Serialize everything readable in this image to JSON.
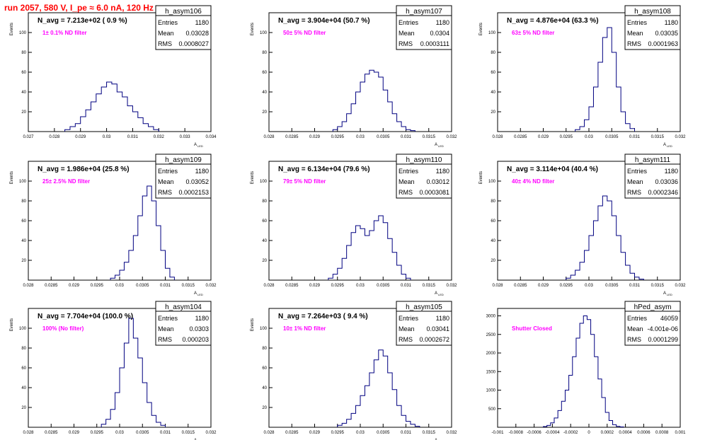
{
  "page": {
    "title": "run 2057,   580 V, I_pe ≈ 6.0 nA, 120 Hz"
  },
  "colors": {
    "histogram": "#000080",
    "title": "#ff0000",
    "annotation": "#ff00ff",
    "text": "#000000"
  },
  "chart_data": [
    {
      "type": "histogram",
      "hist_name": "h_asym106",
      "navg": "N_avg = 7.213e+02 ( 0.9 %)",
      "annotation": "1± 0.1% ND filter",
      "stats": [
        [
          "Entries",
          "1180"
        ],
        [
          "Mean",
          "0.03028"
        ],
        [
          "RMS",
          "0.0008027"
        ]
      ],
      "ylabel": "Events",
      "xlabel": "A_{LED}",
      "xlabel_main": "A",
      "xlabel_sub": "LED",
      "xlim": [
        0.027,
        0.034
      ],
      "ylim": [
        0,
        120
      ],
      "xticks": [
        "0.027",
        "0.028",
        "0.029",
        "0.03",
        "0.031",
        "0.032",
        "0.033",
        "0.034"
      ],
      "xtick_values": [
        0.027,
        0.028,
        0.029,
        0.03,
        0.031,
        0.032,
        0.033,
        0.034
      ],
      "yticks": [
        "20",
        "40",
        "60",
        "80",
        "100"
      ],
      "ytick_values": [
        20,
        40,
        60,
        80,
        100
      ],
      "centers": [
        0.0285,
        0.0287,
        0.0289,
        0.0291,
        0.0293,
        0.0295,
        0.0297,
        0.0299,
        0.0301,
        0.0303,
        0.0305,
        0.0307,
        0.0309,
        0.0311,
        0.0313,
        0.0315,
        0.0317,
        0.0319
      ],
      "counts": [
        2,
        5,
        8,
        15,
        22,
        30,
        38,
        45,
        50,
        48,
        40,
        35,
        26,
        20,
        14,
        8,
        5,
        2
      ]
    },
    {
      "type": "histogram",
      "hist_name": "h_asym107",
      "navg": "N_avg = 3.904e+04 (50.7 %)",
      "annotation": "50± 5% ND filter",
      "stats": [
        [
          "Entries",
          "1180"
        ],
        [
          "Mean",
          "0.0304"
        ],
        [
          "RMS",
          "0.0003111"
        ]
      ],
      "ylabel": "Events",
      "xlabel": "A_{LED}",
      "xlabel_main": "A",
      "xlabel_sub": "LED",
      "xlim": [
        0.028,
        0.032
      ],
      "ylim": [
        0,
        120
      ],
      "xticks": [
        "0.028",
        "0.0285",
        "0.029",
        "0.0295",
        "0.03",
        "0.0305",
        "0.031",
        "0.0315",
        "0.032"
      ],
      "xtick_values": [
        0.028,
        0.0285,
        0.029,
        0.0295,
        0.03,
        0.0305,
        0.031,
        0.0315,
        0.032
      ],
      "yticks": [
        "20",
        "40",
        "60",
        "80",
        "100"
      ],
      "ytick_values": [
        20,
        40,
        60,
        80,
        100
      ],
      "centers": [
        0.02945,
        0.02955,
        0.02965,
        0.02975,
        0.02985,
        0.02995,
        0.03005,
        0.03015,
        0.03025,
        0.03035,
        0.03045,
        0.03055,
        0.03065,
        0.03075,
        0.03085,
        0.03095,
        0.03105,
        0.03115
      ],
      "counts": [
        2,
        5,
        10,
        18,
        28,
        40,
        50,
        58,
        62,
        60,
        55,
        42,
        30,
        18,
        10,
        5,
        2,
        1
      ]
    },
    {
      "type": "histogram",
      "hist_name": "h_asym108",
      "navg": "N_avg = 4.876e+04 (63.3 %)",
      "annotation": "63± 5% ND filter",
      "stats": [
        [
          "Entries",
          "1180"
        ],
        [
          "Mean",
          "0.03035"
        ],
        [
          "RMS",
          "0.0001963"
        ]
      ],
      "ylabel": "Events",
      "xlabel": "A_{LED}",
      "xlabel_main": "A",
      "xlabel_sub": "LED",
      "xlim": [
        0.028,
        0.032
      ],
      "ylim": [
        0,
        120
      ],
      "xticks": [
        "0.028",
        "0.0285",
        "0.029",
        "0.0295",
        "0.03",
        "0.0305",
        "0.031",
        "0.0315",
        "0.032"
      ],
      "xtick_values": [
        0.028,
        0.0285,
        0.029,
        0.0295,
        0.03,
        0.0305,
        0.031,
        0.0315,
        0.032
      ],
      "yticks": [
        "20",
        "40",
        "60",
        "80",
        "100"
      ],
      "ytick_values": [
        20,
        40,
        60,
        80,
        100
      ],
      "centers": [
        0.02975,
        0.02985,
        0.02995,
        0.03005,
        0.03015,
        0.03025,
        0.03035,
        0.03045,
        0.03055,
        0.03065,
        0.03075,
        0.03085,
        0.03095
      ],
      "counts": [
        2,
        5,
        12,
        25,
        45,
        70,
        95,
        105,
        80,
        45,
        20,
        8,
        3
      ]
    },
    {
      "type": "histogram",
      "hist_name": "h_asym109",
      "navg": "N_avg = 1.986e+04 (25.8 %)",
      "annotation": "25± 2.5% ND filter",
      "stats": [
        [
          "Entries",
          "1180"
        ],
        [
          "Mean",
          "0.03052"
        ],
        [
          "RMS",
          "0.0002153"
        ]
      ],
      "ylabel": "Events",
      "xlabel": "A_{LED}",
      "xlabel_main": "A",
      "xlabel_sub": "LED",
      "xlim": [
        0.028,
        0.032
      ],
      "ylim": [
        0,
        120
      ],
      "xticks": [
        "0.028",
        "0.0285",
        "0.029",
        "0.0295",
        "0.03",
        "0.0305",
        "0.031",
        "0.0315",
        "0.032"
      ],
      "xtick_values": [
        0.028,
        0.0285,
        0.029,
        0.0295,
        0.03,
        0.0305,
        0.031,
        0.0315,
        0.032
      ],
      "yticks": [
        "20",
        "40",
        "60",
        "80",
        "100"
      ],
      "ytick_values": [
        20,
        40,
        60,
        80,
        100
      ],
      "centers": [
        0.02985,
        0.02995,
        0.03005,
        0.03015,
        0.03025,
        0.03035,
        0.03045,
        0.03055,
        0.03065,
        0.03075,
        0.03085,
        0.03095,
        0.03105,
        0.03115
      ],
      "counts": [
        2,
        5,
        10,
        18,
        30,
        45,
        65,
        85,
        95,
        80,
        55,
        30,
        12,
        3
      ]
    },
    {
      "type": "histogram",
      "hist_name": "h_asym110",
      "navg": "N_avg = 6.134e+04 (79.6 %)",
      "annotation": "79± 5% ND filter",
      "stats": [
        [
          "Entries",
          "1180"
        ],
        [
          "Mean",
          "0.03012"
        ],
        [
          "RMS",
          "0.0003081"
        ]
      ],
      "ylabel": "Events",
      "xlabel": "A_{LED}",
      "xlabel_main": "A",
      "xlabel_sub": "LED",
      "xlim": [
        0.028,
        0.032
      ],
      "ylim": [
        0,
        120
      ],
      "xticks": [
        "0.028",
        "0.0285",
        "0.029",
        "0.0295",
        "0.03",
        "0.0305",
        "0.031",
        "0.0315",
        "0.032"
      ],
      "xtick_values": [
        0.028,
        0.0285,
        0.029,
        0.0295,
        0.03,
        0.0305,
        0.031,
        0.0315,
        0.032
      ],
      "yticks": [
        "20",
        "40",
        "60",
        "80",
        "100"
      ],
      "ytick_values": [
        20,
        40,
        60,
        80,
        100
      ],
      "centers": [
        0.02935,
        0.02945,
        0.02955,
        0.02965,
        0.02975,
        0.02985,
        0.02995,
        0.03005,
        0.03015,
        0.03025,
        0.03035,
        0.03045,
        0.03055,
        0.03065,
        0.03075,
        0.03085,
        0.03095,
        0.03105
      ],
      "counts": [
        2,
        6,
        12,
        22,
        35,
        48,
        55,
        52,
        45,
        50,
        60,
        65,
        58,
        42,
        28,
        15,
        6,
        2
      ]
    },
    {
      "type": "histogram",
      "hist_name": "h_asym111",
      "navg": "N_avg = 3.114e+04 (40.4 %)",
      "annotation": "40± 4% ND filter",
      "stats": [
        [
          "Entries",
          "1180"
        ],
        [
          "Mean",
          "0.03036"
        ],
        [
          "RMS",
          "0.0002346"
        ]
      ],
      "ylabel": "Events",
      "xlabel": "A_{LED}",
      "xlabel_main": "A",
      "xlabel_sub": "LED",
      "xlim": [
        0.028,
        0.032
      ],
      "ylim": [
        0,
        120
      ],
      "xticks": [
        "0.028",
        "0.0285",
        "0.029",
        "0.0295",
        "0.03",
        "0.0305",
        "0.031",
        "0.0315",
        "0.032"
      ],
      "xtick_values": [
        0.028,
        0.0285,
        0.029,
        0.0295,
        0.03,
        0.0305,
        0.031,
        0.0315,
        0.032
      ],
      "yticks": [
        "20",
        "40",
        "60",
        "80",
        "100"
      ],
      "ytick_values": [
        20,
        40,
        60,
        80,
        100
      ],
      "centers": [
        0.02955,
        0.02965,
        0.02975,
        0.02985,
        0.02995,
        0.03005,
        0.03015,
        0.03025,
        0.03035,
        0.03045,
        0.03055,
        0.03065,
        0.03075,
        0.03085,
        0.03095,
        0.03105,
        0.03115
      ],
      "counts": [
        2,
        5,
        10,
        18,
        30,
        45,
        60,
        75,
        85,
        80,
        65,
        45,
        28,
        15,
        7,
        3,
        1
      ]
    },
    {
      "type": "histogram",
      "hist_name": "h_asym104",
      "navg": "N_avg = 7.704e+04 (100.0 %)",
      "annotation": "100% (No filter)",
      "stats": [
        [
          "Entries",
          "1180"
        ],
        [
          "Mean",
          "0.0303"
        ],
        [
          "RMS",
          "0.000203"
        ]
      ],
      "ylabel": "Events",
      "xlabel": "A_{LED}",
      "xlabel_main": "A",
      "xlabel_sub": "LED",
      "xlim": [
        0.028,
        0.032
      ],
      "ylim": [
        0,
        120
      ],
      "xticks": [
        "0.028",
        "0.0285",
        "0.029",
        "0.0295",
        "0.03",
        "0.0305",
        "0.031",
        "0.0315",
        "0.032"
      ],
      "xtick_values": [
        0.028,
        0.0285,
        0.029,
        0.0295,
        0.03,
        0.0305,
        0.031,
        0.0315,
        0.032
      ],
      "yticks": [
        "20",
        "40",
        "60",
        "80",
        "100"
      ],
      "ytick_values": [
        20,
        40,
        60,
        80,
        100
      ],
      "centers": [
        0.02965,
        0.02975,
        0.02985,
        0.02995,
        0.03005,
        0.03015,
        0.03025,
        0.03035,
        0.03045,
        0.03055,
        0.03065,
        0.03075,
        0.03085,
        0.03095
      ],
      "counts": [
        3,
        8,
        18,
        35,
        60,
        85,
        110,
        90,
        70,
        45,
        25,
        12,
        5,
        2
      ]
    },
    {
      "type": "histogram",
      "hist_name": "h_asym105",
      "navg": "N_avg = 7.264e+03 ( 9.4 %)",
      "annotation": "10± 1% ND filter",
      "stats": [
        [
          "Entries",
          "1180"
        ],
        [
          "Mean",
          "0.03041"
        ],
        [
          "RMS",
          "0.0002672"
        ]
      ],
      "ylabel": "Events",
      "xlabel": "A_{LED}",
      "xlabel_main": "A",
      "xlabel_sub": "LED",
      "xlim": [
        0.028,
        0.032
      ],
      "ylim": [
        0,
        120
      ],
      "xticks": [
        "0.028",
        "0.0285",
        "0.029",
        "0.0295",
        "0.03",
        "0.0305",
        "0.031",
        "0.0315",
        "0.032"
      ],
      "xtick_values": [
        0.028,
        0.0285,
        0.029,
        0.0295,
        0.03,
        0.0305,
        0.031,
        0.0315,
        0.032
      ],
      "yticks": [
        "20",
        "40",
        "60",
        "80",
        "100"
      ],
      "ytick_values": [
        20,
        40,
        60,
        80,
        100
      ],
      "centers": [
        0.02955,
        0.02965,
        0.02975,
        0.02985,
        0.02995,
        0.03005,
        0.03015,
        0.03025,
        0.03035,
        0.03045,
        0.03055,
        0.03065,
        0.03075,
        0.03085,
        0.03095,
        0.03105,
        0.03115,
        0.03125
      ],
      "counts": [
        2,
        4,
        8,
        14,
        22,
        32,
        42,
        55,
        68,
        78,
        72,
        55,
        38,
        22,
        12,
        6,
        3,
        1
      ]
    },
    {
      "type": "histogram",
      "hist_name": "hPed_asym",
      "navg": "",
      "annotation": "Shutter Closed",
      "stats": [
        [
          "Entries",
          "46059"
        ],
        [
          "Mean",
          "-4.001e-06"
        ],
        [
          "RMS",
          "0.0001299"
        ]
      ],
      "ylabel": "",
      "xlabel": "",
      "xlabel_main": "",
      "xlabel_sub": "",
      "xlim": [
        -0.001,
        0.001
      ],
      "ylim": [
        0,
        3200
      ],
      "xticks": [
        "-0.001",
        "-0.0008",
        "-0.0006",
        "-0.0004",
        "-0.0002",
        "0",
        "0.0002",
        "0.0004",
        "0.0006",
        "0.0008",
        "0.001"
      ],
      "xtick_values": [
        -0.001,
        -0.0008,
        -0.0006,
        -0.0004,
        -0.0002,
        0,
        0.0002,
        0.0004,
        0.0006,
        0.0008,
        0.001
      ],
      "yticks": [
        "500",
        "1000",
        "1500",
        "2000",
        "2500",
        "3000"
      ],
      "ytick_values": [
        500,
        1000,
        1500,
        2000,
        2500,
        3000
      ],
      "centers": [
        -0.00048,
        -0.00044,
        -0.0004,
        -0.00036,
        -0.00032,
        -0.00028,
        -0.00024,
        -0.0002,
        -0.00016,
        -0.00012,
        -8e-05,
        -4e-05,
        0,
        4e-05,
        8e-05,
        0.00012,
        0.00016,
        0.0002,
        0.00024,
        0.00028,
        0.00032,
        0.00036
      ],
      "counts": [
        20,
        50,
        120,
        250,
        450,
        700,
        1000,
        1400,
        1900,
        2400,
        2800,
        3000,
        2900,
        2500,
        1900,
        1300,
        800,
        400,
        180,
        70,
        25,
        10
      ]
    }
  ]
}
